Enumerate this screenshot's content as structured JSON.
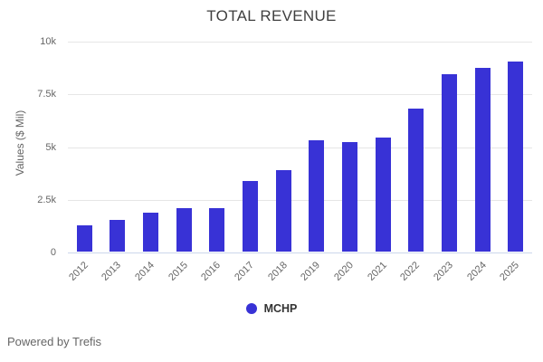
{
  "chart_data": {
    "type": "bar",
    "title": "TOTAL REVENUE",
    "ylabel": "Values ($ Mil)",
    "xlabel": "",
    "categories": [
      "2012",
      "2013",
      "2014",
      "2015",
      "2016",
      "2017",
      "2018",
      "2019",
      "2020",
      "2021",
      "2022",
      "2023",
      "2024",
      "2025"
    ],
    "series": [
      {
        "name": "MCHP",
        "values": [
          1250,
          1500,
          1850,
          2050,
          2060,
          3350,
          3850,
          5300,
          5200,
          5400,
          6800,
          8400,
          8700,
          9000
        ]
      }
    ],
    "ylim": [
      0,
      10000
    ],
    "yticks": [
      {
        "value": 0,
        "label": "0"
      },
      {
        "value": 2500,
        "label": "2.5k"
      },
      {
        "value": 5000,
        "label": "5k"
      },
      {
        "value": 7500,
        "label": "7.5k"
      },
      {
        "value": 10000,
        "label": "10k"
      }
    ],
    "grid": true,
    "legend_position": "bottom-center",
    "bar_color": "#3832d6",
    "grid_color": "#e6e6e6",
    "axis_line_color": "#ccd6eb",
    "title_color": "#3f3f3f",
    "tick_label_color": "#666666"
  },
  "footer": {
    "text": "Powered by Trefis"
  }
}
